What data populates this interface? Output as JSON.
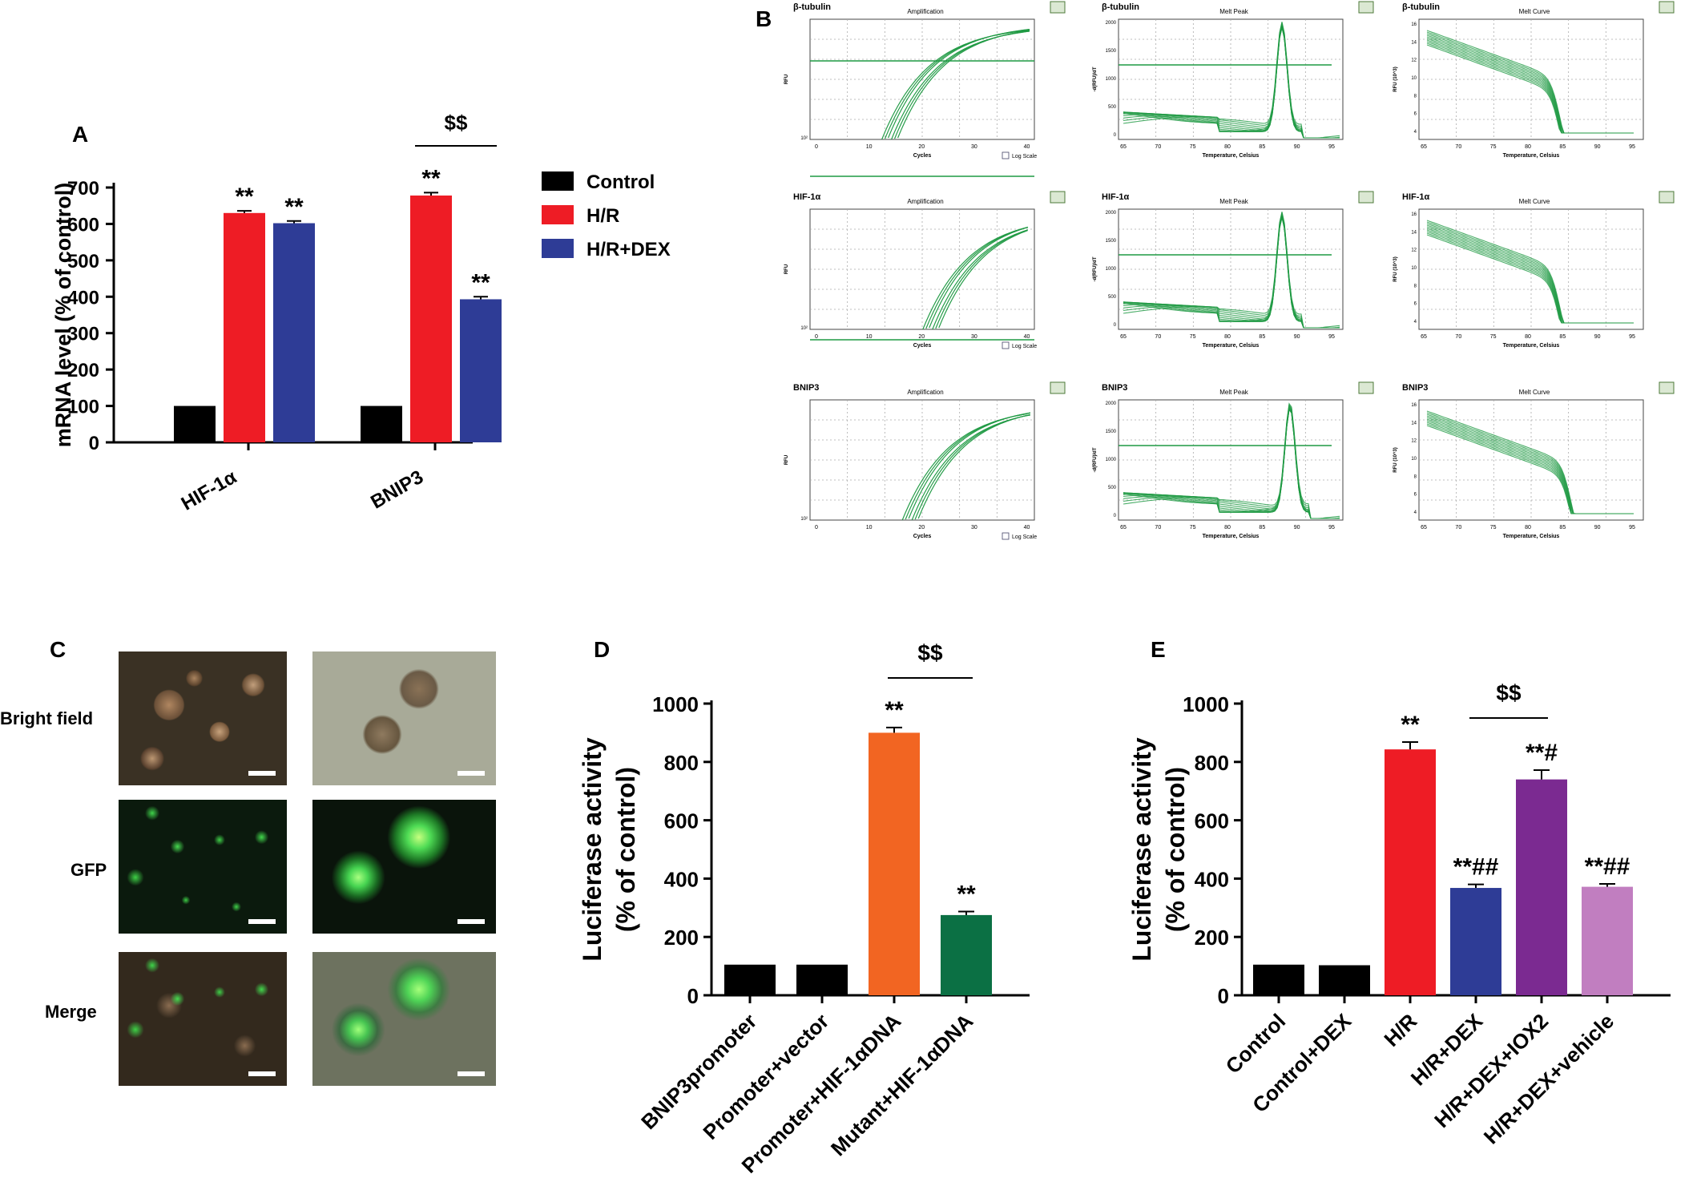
{
  "panels": {
    "A": "A",
    "B": "B",
    "C": "C",
    "D": "D",
    "E": "E"
  },
  "colors": {
    "control": "#000000",
    "hr": "#ee1c25",
    "hr_dex": "#2e3c96",
    "orange": "#f26522",
    "dark_green": "#0b7044",
    "purple": "#7b2a91",
    "pink": "#c17ec0",
    "qpcr_green": "#1f9a44"
  },
  "chart_data": [
    {
      "panel": "A",
      "type": "bar",
      "categories": [
        "HIF-1α",
        "BNIP3"
      ],
      "series": [
        {
          "name": "Control",
          "values": [
            100,
            100
          ],
          "errors": [
            0,
            0
          ]
        },
        {
          "name": "H/R",
          "values": [
            630,
            678
          ],
          "errors": [
            6,
            8
          ]
        },
        {
          "name": "H/R+DEX",
          "values": [
            602,
            393
          ],
          "errors": [
            6,
            7
          ]
        }
      ],
      "ylabel": "mRNA level (% of control)",
      "ylim": [
        0,
        700
      ],
      "yticks": [
        0,
        100,
        200,
        300,
        400,
        500,
        600,
        700
      ],
      "annotations": {
        "hr_sig": "**",
        "hr_dex_sig": "**",
        "bracket": "$$"
      },
      "legend": [
        "Control",
        "H/R",
        "H/R+DEX"
      ],
      "legend_position": "right"
    },
    {
      "panel": "D",
      "type": "bar",
      "categories": [
        "BNIP3promoter",
        "Promoter+vector",
        "Promoter+HIF-1αDNA",
        "Mutant+HIF-1αDNA"
      ],
      "values": [
        105,
        105,
        900,
        275
      ],
      "errors": [
        0,
        0,
        18,
        12
      ],
      "labels": [
        "",
        "",
        "**",
        "**"
      ],
      "bracket": "$$",
      "ylabel_line1": "Luciferase activity",
      "ylabel_line2": "(% of control)",
      "ylim": [
        0,
        1000
      ],
      "yticks": [
        0,
        200,
        400,
        600,
        800,
        1000
      ]
    },
    {
      "panel": "E",
      "type": "bar",
      "categories": [
        "Control",
        "Control+DEX",
        "H/R",
        "H/R+DEX",
        "H/R+DEX+IOX2",
        "H/R+DEX+vehicle"
      ],
      "values": [
        105,
        103,
        843,
        368,
        740,
        372
      ],
      "errors": [
        0,
        0,
        25,
        12,
        32,
        10
      ],
      "labels": [
        "",
        "",
        "**",
        "**##",
        "**#",
        "**##"
      ],
      "bracket": "$$",
      "ylabel_line1": "Luciferase activity",
      "ylabel_line2": "(% of control)",
      "ylim": [
        0,
        1000
      ],
      "yticks": [
        0,
        200,
        400,
        600,
        800,
        1000
      ]
    }
  ],
  "qpcr": {
    "rows": [
      "β-tubulin",
      "HIF-1α",
      "BNIP3"
    ],
    "plot_titles": [
      "Amplification",
      "Melt Peak",
      "Melt Curve"
    ],
    "xlabels": [
      "Cycles",
      "Temperature, Celsius",
      "Temperature, Celsius"
    ],
    "ylabels": [
      "RFU",
      "-d(RFU)/dT",
      "RFU (10^3)"
    ],
    "log_scale": "Log Scale",
    "amp_xticks": [
      "0",
      "10",
      "20",
      "30",
      "40"
    ],
    "amp_ylow": "10²",
    "melt_xticks": [
      "65",
      "70",
      "75",
      "80",
      "85",
      "90",
      "95"
    ],
    "peak_yticks": [
      "0",
      "500",
      "1000",
      "1500",
      "2000"
    ],
    "curve_yticks": [
      "4",
      "6",
      "8",
      "10",
      "12",
      "14",
      "16"
    ]
  },
  "micrographs": {
    "row_labels": [
      "Bright field",
      "GFP",
      "Merge"
    ]
  }
}
